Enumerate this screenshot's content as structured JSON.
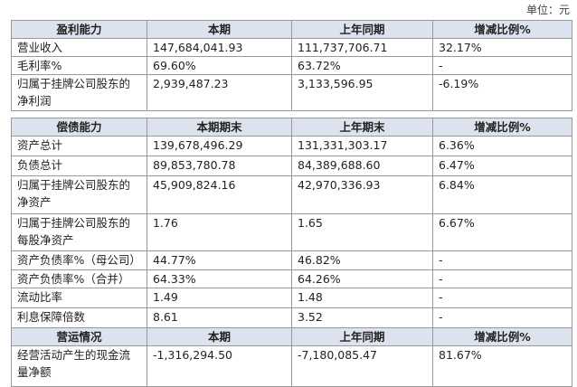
{
  "unit": "单位：元",
  "tables": [
    {
      "header": [
        "盈利能力",
        "本期",
        "上年同期",
        "增减比例%"
      ],
      "rows": [
        [
          "营业收入",
          "147,684,041.93",
          "111,737,706.71",
          "32.17%"
        ],
        [
          "毛利率%",
          "69.60%",
          "63.72%",
          "-"
        ],
        [
          "归属于挂牌公司股东的净利润",
          "2,939,487.23",
          "3,133,596.95",
          "-6.19%"
        ]
      ]
    },
    {
      "header": [
        "偿债能力",
        "本期期末",
        "上年期末",
        "增减比例%"
      ],
      "rows": [
        [
          "资产总计",
          "139,678,496.29",
          "131,331,303.17",
          "6.36%"
        ],
        [
          "负债总计",
          "89,853,780.78",
          "84,389,688.60",
          "6.47%"
        ],
        [
          "归属于挂牌公司股东的净资产",
          "45,909,824.16",
          "42,970,336.93",
          "6.84%"
        ],
        [
          "归属于挂牌公司股东的每股净资产",
          "1.76",
          "1.65",
          "6.67%"
        ],
        [
          "资产负债率%（母公司）",
          "44.77%",
          "46.82%",
          "-"
        ],
        [
          "资产负债率%（合并）",
          "64.33%",
          "64.26%",
          "-"
        ],
        [
          "流动比率",
          "1.49",
          "1.48",
          "-"
        ],
        [
          "利息保障倍数",
          "8.61",
          "3.52",
          "-"
        ]
      ]
    },
    {
      "header": [
        "营运情况",
        "本期",
        "上年同期",
        "增减比例%"
      ],
      "rows": [
        [
          "经营活动产生的现金流量净额",
          "-1,316,294.50",
          "-7,180,085.47",
          "81.67%"
        ]
      ]
    }
  ]
}
